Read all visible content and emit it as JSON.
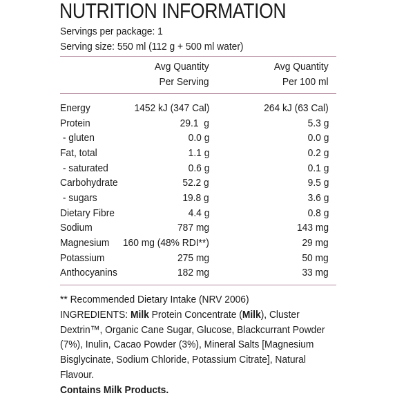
{
  "title": "NUTRITION INFORMATION",
  "servings_per_package": "Servings per package: 1",
  "serving_size": "Serving size: 550 ml (112 g + 500 ml water)",
  "header": {
    "per_serving_line1": "Avg Quantity",
    "per_serving_line2": "Per Serving",
    "per_100_line1": "Avg Quantity",
    "per_100_line2": "Per 100 ml"
  },
  "rows": [
    {
      "label": "Energy",
      "per_serving": "1452 kJ (347 Cal)",
      "per_100": "264 kJ (63 Cal)"
    },
    {
      "label": "Protein",
      "per_serving": "29.1  g",
      "per_100": "5.3 g"
    },
    {
      "label": " - gluten",
      "per_serving": "0.0 g",
      "per_100": "0.0 g"
    },
    {
      "label": "Fat, total",
      "per_serving": "1.1 g",
      "per_100": "0.2 g"
    },
    {
      "label": " - saturated",
      "per_serving": "0.6 g",
      "per_100": "0.1 g"
    },
    {
      "label": "Carbohydrate",
      "per_serving": "52.2 g",
      "per_100": "9.5 g"
    },
    {
      "label": " - sugars",
      "per_serving": "19.8 g",
      "per_100": "3.6 g"
    },
    {
      "label": "Dietary Fibre",
      "per_serving": "4.4 g",
      "per_100": "0.8 g"
    },
    {
      "label": "Sodium",
      "per_serving": "787 mg",
      "per_100": "143 mg"
    },
    {
      "label": "Magnesium",
      "per_serving": "160 mg (48% RDI**)",
      "per_100": "29 mg"
    },
    {
      "label": "Potassium",
      "per_serving": "275 mg",
      "per_100": "50 mg"
    },
    {
      "label": "Anthocyanins",
      "per_serving": "182 mg",
      "per_100": "33 mg"
    }
  ],
  "footnote": "** Recommended Dietary Intake (NRV 2006)",
  "ingredients": {
    "prefix": "INGREDIENTS: ",
    "milk1": "Milk",
    "part1": " Protein Concentrate (",
    "milk2": "Milk",
    "part2": "), Cluster Dextrin™, Organic Cane Sugar, Glucose, Blackcurrant Powder (7%), Inulin, Cacao Powder (3%), Mineral Salts [Magnesium Bisglycinate, Sodium Chloride, Potassium Citrate], Natural Flavour."
  },
  "allergen": "Contains Milk Products.",
  "colors": {
    "rule": "#b48a9c",
    "text": "#1a1a1a"
  }
}
